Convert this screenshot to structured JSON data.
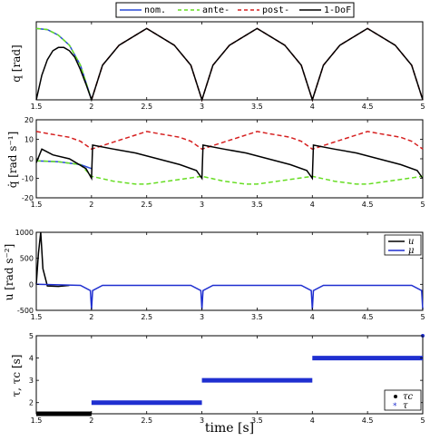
{
  "chart_data": [
    {
      "type": "line",
      "ylabel": "q [rad]",
      "xlim": [
        1.5,
        5
      ],
      "ylim": [
        0,
        0.7
      ],
      "x_ticks": [
        "1.5",
        "2",
        "2.5",
        "3",
        "3.5",
        "4",
        "4.5",
        "5"
      ],
      "y_ticks": [],
      "legend": {
        "placement": "top-center",
        "entries": [
          {
            "label": "nom.",
            "color": "#2a4bd7",
            "dash": "solid"
          },
          {
            "label": "ante-",
            "color": "#66dd22",
            "dash": "dashed"
          },
          {
            "label": "post-",
            "color": "#d62020",
            "dash": "dashed"
          },
          {
            "label": "1-DoF",
            "color": "#000000",
            "dash": "solid"
          }
        ]
      },
      "series": [
        {
          "name": "nom.",
          "x": [
            1.5,
            1.6,
            1.7,
            1.8,
            1.9,
            2.0
          ],
          "y": [
            0.64,
            0.63,
            0.58,
            0.49,
            0.31,
            0.0
          ]
        },
        {
          "name": "ante-",
          "x": [
            1.5,
            1.6,
            1.7,
            1.8,
            1.9,
            2.0
          ],
          "y": [
            0.64,
            0.63,
            0.58,
            0.49,
            0.31,
            0.0
          ]
        },
        {
          "name": "post-",
          "x": [
            2.0,
            2.1,
            2.25,
            2.5,
            2.75,
            2.9,
            3.0,
            3.1,
            3.25,
            3.5,
            3.75,
            3.9,
            4.0,
            4.1,
            4.25,
            4.5,
            4.75,
            4.9,
            5.0
          ],
          "y": [
            0.0,
            0.31,
            0.49,
            0.64,
            0.49,
            0.31,
            0.0,
            0.31,
            0.49,
            0.64,
            0.49,
            0.31,
            0.0,
            0.31,
            0.49,
            0.64,
            0.49,
            0.31,
            0.0
          ]
        },
        {
          "name": "1-DoF",
          "x": [
            1.5,
            1.55,
            1.6,
            1.65,
            1.7,
            1.75,
            1.8,
            1.85,
            1.9,
            1.95,
            2.0,
            2.1,
            2.25,
            2.5,
            2.75,
            2.9,
            3.0,
            3.1,
            3.25,
            3.5,
            3.75,
            3.9,
            4.0,
            4.1,
            4.25,
            4.5,
            4.75,
            4.9,
            5.0
          ],
          "y": [
            0.0,
            0.22,
            0.36,
            0.44,
            0.47,
            0.47,
            0.44,
            0.38,
            0.27,
            0.14,
            0.0,
            0.31,
            0.49,
            0.64,
            0.49,
            0.31,
            0.0,
            0.31,
            0.49,
            0.64,
            0.49,
            0.31,
            0.0,
            0.31,
            0.49,
            0.64,
            0.49,
            0.31,
            0.0
          ]
        }
      ]
    },
    {
      "type": "line",
      "ylabel": "q̇ [rad s⁻¹]",
      "xlim": [
        1.5,
        5
      ],
      "ylim": [
        -20,
        20
      ],
      "x_ticks": [
        "1.5",
        "2",
        "2.5",
        "3",
        "3.5",
        "4",
        "4.5",
        "5"
      ],
      "y_ticks": [
        "-20",
        "-10",
        "0",
        "10",
        "20"
      ],
      "series": [
        {
          "name": "nom.",
          "x": [
            1.5,
            1.7,
            1.9,
            2.0
          ],
          "y": [
            -1,
            -1.5,
            -3,
            -5
          ]
        },
        {
          "name": "ante-",
          "x": [
            1.5,
            1.7,
            1.9,
            2.0,
            2.2,
            2.4,
            2.5,
            3.0,
            3.2,
            3.4,
            3.5,
            4.0,
            4.2,
            4.4,
            4.5,
            5.0
          ],
          "y": [
            -1,
            -1.5,
            -3,
            -9,
            -11.5,
            -13,
            -13,
            -9,
            -11.5,
            -13,
            -13,
            -9,
            -11.5,
            -13,
            -13,
            -9
          ]
        },
        {
          "name": "post-",
          "x": [
            1.5,
            1.6,
            1.8,
            1.9,
            2.0,
            2.5,
            2.6,
            2.8,
            2.9,
            3.0,
            3.5,
            3.6,
            3.8,
            3.9,
            4.0,
            4.5,
            4.6,
            4.8,
            4.9,
            5.0
          ],
          "y": [
            14,
            13,
            11,
            9,
            5,
            14,
            13,
            11,
            9,
            5,
            14,
            13,
            11,
            9,
            5,
            14,
            13,
            11,
            9,
            5
          ]
        },
        {
          "name": "1-DoF",
          "x": [
            1.5,
            1.55,
            1.65,
            1.8,
            1.95,
            2.0,
            2.01,
            2.2,
            2.4,
            2.6,
            2.8,
            2.95,
            3.0,
            3.01,
            3.2,
            3.4,
            3.6,
            3.8,
            3.95,
            4.0,
            4.01,
            4.2,
            4.4,
            4.6,
            4.8,
            4.95,
            5.0
          ],
          "y": [
            -2,
            5,
            2,
            0,
            -5,
            -10,
            7,
            5,
            3,
            0,
            -3,
            -6,
            -10,
            7,
            5,
            3,
            0,
            -3,
            -6,
            -10,
            7,
            5,
            3,
            0,
            -3,
            -6,
            -10
          ]
        }
      ]
    },
    {
      "type": "line",
      "ylabel": "u [rad s⁻²]",
      "xlim": [
        1.5,
        5
      ],
      "ylim": [
        -500,
        1000
      ],
      "x_ticks": [
        "1.5",
        "2",
        "2.5",
        "3",
        "3.5",
        "4",
        "4.5",
        "5"
      ],
      "y_ticks": [
        "-500",
        "0",
        "500",
        "1000"
      ],
      "legend": {
        "placement": "top-right",
        "entries": [
          {
            "label": "u",
            "color": "#000000"
          },
          {
            "label": "μ",
            "color": "#1f2fd0"
          }
        ]
      },
      "series": [
        {
          "name": "u",
          "x": [
            1.5,
            1.52,
            1.54,
            1.56,
            1.6,
            1.7,
            1.8
          ],
          "y": [
            0,
            600,
            1000,
            300,
            -30,
            -40,
            -20
          ]
        },
        {
          "name": "μ",
          "x": [
            1.5,
            1.9,
            1.99,
            2.0,
            2.01,
            2.1,
            2.9,
            2.99,
            3.0,
            3.01,
            3.1,
            3.9,
            3.99,
            4.0,
            4.01,
            4.1,
            4.9,
            4.99,
            5.0
          ],
          "y": [
            0,
            -20,
            -120,
            -480,
            -120,
            -20,
            -20,
            -120,
            -480,
            -120,
            -20,
            -20,
            -120,
            -480,
            -120,
            -20,
            -20,
            -120,
            -480
          ]
        }
      ]
    },
    {
      "type": "scatter",
      "ylabel": "τ, τc [s]",
      "xlabel": "time [s]",
      "xlim": [
        1.5,
        5
      ],
      "ylim": [
        1.5,
        5
      ],
      "x_ticks": [
        "1.5",
        "2",
        "2.5",
        "3",
        "3.5",
        "4",
        "4.5",
        "5"
      ],
      "y_ticks": [
        "2",
        "3",
        "4",
        "5"
      ],
      "legend": {
        "placement": "bottom-right",
        "entries": [
          {
            "label": "τc",
            "color": "#000000"
          },
          {
            "label": "τ",
            "color": "#1f2fd0"
          }
        ]
      },
      "series": [
        {
          "name": "τc",
          "segments": [
            [
              1.5,
              2.0,
              1.5
            ]
          ]
        },
        {
          "name": "τ",
          "segments": [
            [
              2.0,
              3.0,
              2.0
            ],
            [
              3.0,
              4.0,
              3.0
            ],
            [
              4.0,
              5.0,
              4.0
            ]
          ],
          "points": [
            [
              5.0,
              5.0
            ]
          ]
        }
      ]
    }
  ]
}
